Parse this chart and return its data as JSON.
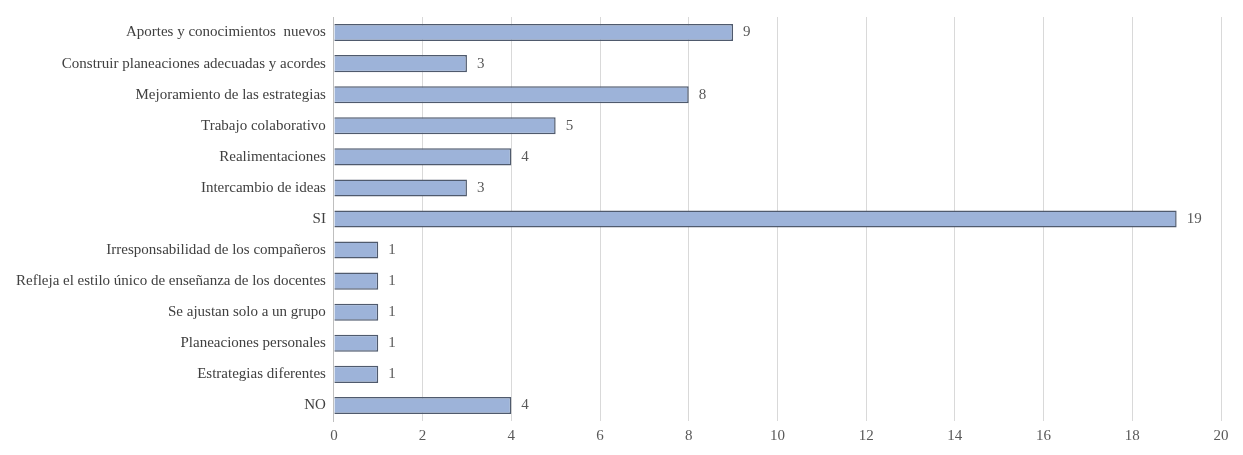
{
  "chart_data": {
    "type": "bar",
    "orientation": "horizontal",
    "categories": [
      "Aportes y conocimientos  nuevos",
      "Construir planeaciones adecuadas y acordes",
      "Mejoramiento de las estrategias",
      "Trabajo colaborativo",
      "Realimentaciones",
      "Intercambio de ideas",
      "SI",
      "Irresponsabilidad de los compañeros",
      "Refleja el estilo único de enseñanza de los docentes",
      "Se ajustan solo a un grupo",
      "Planeaciones personales",
      "Estrategias diferentes",
      "NO"
    ],
    "values": [
      9,
      3,
      8,
      5,
      4,
      3,
      19,
      1,
      1,
      1,
      1,
      1,
      4
    ],
    "color": "#9db3d9",
    "xlim": [
      0,
      20
    ],
    "xticks": [
      0,
      2,
      4,
      6,
      8,
      10,
      12,
      14,
      16,
      18,
      20
    ],
    "grid": "x",
    "data_labels": true
  }
}
